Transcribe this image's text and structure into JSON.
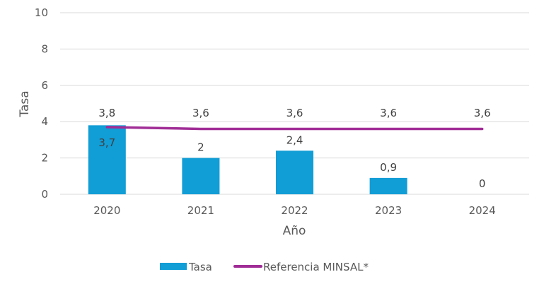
{
  "chart_data": {
    "type": "bar",
    "title": "",
    "xlabel": "Año",
    "ylabel": "Tasa",
    "ylim": [
      0,
      10
    ],
    "yticks": [
      0,
      2,
      4,
      6,
      8,
      10
    ],
    "ytick_labels": [
      "0",
      "2",
      "4",
      "6",
      "8",
      "10"
    ],
    "grid": true,
    "categories": [
      "2020",
      "2021",
      "2022",
      "2023",
      "2024"
    ],
    "series": [
      {
        "name": "Tasa",
        "type": "bar",
        "color": "#119dd6",
        "values": [
          3.8,
          2,
          2.4,
          0.9,
          0
        ],
        "labels": [
          "3,8",
          "2",
          "2,4",
          "0,9",
          "0"
        ]
      },
      {
        "name": "Referencia MINSAL*",
        "type": "line",
        "color": "#a02d96",
        "values": [
          3.7,
          3.6,
          3.6,
          3.6,
          3.6
        ],
        "labels": [
          "3,7",
          "3,6",
          "3,6",
          "3,6",
          "3,6"
        ]
      }
    ],
    "legend": {
      "position": "bottom",
      "entries": [
        "Tasa",
        "Referencia MINSAL*"
      ]
    }
  }
}
